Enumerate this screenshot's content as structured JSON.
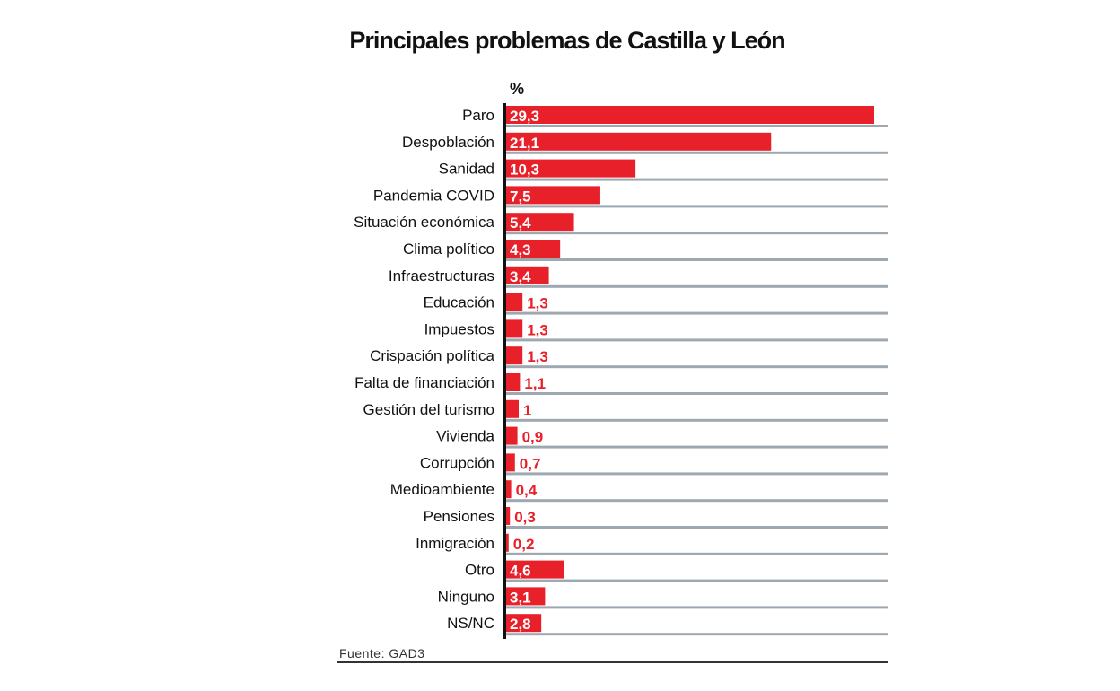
{
  "chart_data": {
    "type": "bar",
    "orientation": "horizontal",
    "title": "Principales problemas de Castilla y León",
    "unit_label": "%",
    "categories": [
      "Paro",
      "Despoblación",
      "Sanidad",
      "Pandemia COVID",
      "Situación económica",
      "Clima político",
      "Infraestructuras",
      "Educación",
      "Impuestos",
      "Crispación política",
      "Falta de financiación",
      "Gestión del turismo",
      "Vivienda",
      "Corrupción",
      "Medioambiente",
      "Pensiones",
      "Inmigración",
      "Otro",
      "Ninguno",
      "NS/NC"
    ],
    "values": [
      29.3,
      21.1,
      10.3,
      7.5,
      5.4,
      4.3,
      3.4,
      1.3,
      1.3,
      1.3,
      1.1,
      1,
      0.9,
      0.7,
      0.4,
      0.3,
      0.2,
      4.6,
      3.1,
      2.8
    ],
    "value_labels": [
      "29,3",
      "21,1",
      "10,3",
      "7,5",
      "5,4",
      "4,3",
      "3,4",
      "1,3",
      "1,3",
      "1,3",
      "1,1",
      "1",
      "0,9",
      "0,7",
      "0,4",
      "0,3",
      "0,2",
      "4,6",
      "3,1",
      "2,8"
    ],
    "xlim": [
      0,
      30.7
    ],
    "grid": true,
    "source": "Fuente: GAD3",
    "colors": {
      "bar": "#e8202a",
      "grid": "#9ea8b1",
      "axis": "#111111"
    }
  }
}
